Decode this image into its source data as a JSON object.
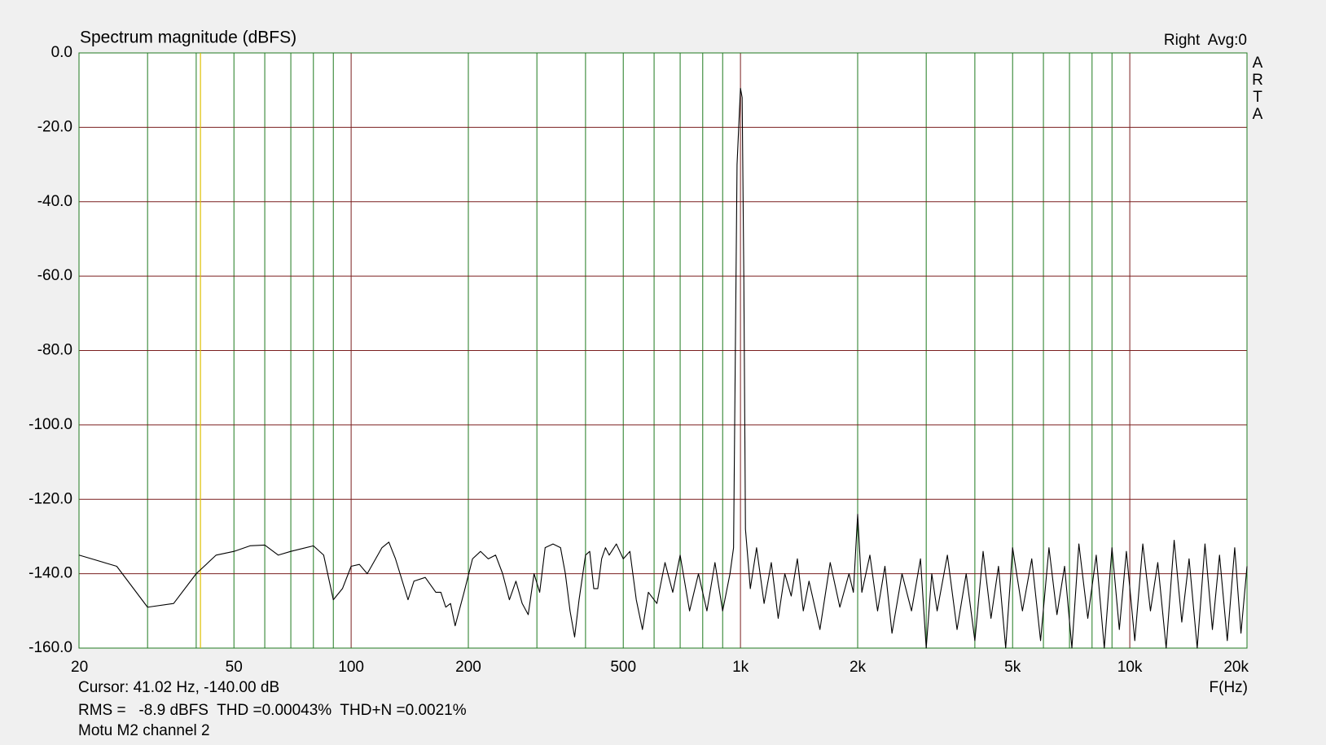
{
  "chart_data": {
    "type": "line",
    "title": "Spectrum magnitude (dBFS)",
    "corner_label": "Right  Avg:0",
    "brand_letters": [
      "A",
      "R",
      "T",
      "A"
    ],
    "xlabel": "F(Hz)",
    "cursor_text": "Cursor: 41.02 Hz, -140.00 dB",
    "stats_text": "RMS =   -8.9 dBFS  THD =0.00043%  THD+N =0.0021%",
    "device_text": "Motu M2 channel 2",
    "cursor_x": 41.02,
    "cursor_color": "#e0c000",
    "stats_color": "#c00000",
    "xscale": "log",
    "xlim": [
      20,
      20000
    ],
    "xticks": [
      20,
      50,
      100,
      200,
      500,
      {
        "value": 1000,
        "label": "1k"
      },
      {
        "value": 2000,
        "label": "2k"
      },
      {
        "value": 5000,
        "label": "5k"
      },
      {
        "value": 10000,
        "label": "10k"
      },
      {
        "value": 20000,
        "label": "20k"
      }
    ],
    "xgrid_minor": [
      30,
      40,
      60,
      70,
      80,
      90,
      300,
      400,
      600,
      700,
      800,
      900,
      3000,
      4000,
      6000,
      7000,
      8000,
      9000
    ],
    "ylim": [
      -160,
      0
    ],
    "yticks": [
      {
        "value": 0,
        "label": "0.0"
      },
      {
        "value": -20,
        "label": "-20.0"
      },
      {
        "value": -40,
        "label": "-40.0"
      },
      {
        "value": -60,
        "label": "-60.0"
      },
      {
        "value": -80,
        "label": "-80.0"
      },
      {
        "value": -100,
        "label": "-100.0"
      },
      {
        "value": -120,
        "label": "-120.0"
      },
      {
        "value": -140,
        "label": "-140.0"
      },
      {
        "value": -160,
        "label": "-160.0"
      }
    ],
    "grid": true,
    "grid_color": "#1f7a1f",
    "decade_grid_color": "#7a1f1f",
    "color": "#000000",
    "x": [
      20,
      25,
      30,
      35,
      40,
      45,
      50,
      55,
      60,
      65,
      70,
      80,
      85,
      90,
      95,
      100,
      105,
      110,
      120,
      125,
      130,
      140,
      145,
      155,
      165,
      170,
      175,
      180,
      185,
      195,
      205,
      215,
      225,
      235,
      245,
      255,
      265,
      275,
      285,
      295,
      305,
      315,
      330,
      345,
      355,
      365,
      375,
      385,
      400,
      410,
      420,
      430,
      440,
      450,
      460,
      480,
      500,
      520,
      540,
      560,
      580,
      610,
      640,
      670,
      700,
      740,
      780,
      820,
      860,
      900,
      940,
      960,
      980,
      1000,
      1010,
      1020,
      1030,
      1060,
      1100,
      1150,
      1200,
      1250,
      1300,
      1350,
      1400,
      1450,
      1500,
      1600,
      1700,
      1800,
      1900,
      1950,
      2000,
      2050,
      2150,
      2250,
      2350,
      2450,
      2600,
      2750,
      2900,
      3000,
      3100,
      3200,
      3400,
      3600,
      3800,
      4000,
      4200,
      4400,
      4600,
      4800,
      5000,
      5300,
      5600,
      5900,
      6200,
      6500,
      6800,
      7100,
      7400,
      7800,
      8200,
      8600,
      9000,
      9400,
      9800,
      10300,
      10800,
      11300,
      11800,
      12400,
      13000,
      13600,
      14200,
      14900,
      15600,
      16300,
      17000,
      17800,
      18600,
      19300,
      20000
    ],
    "values": [
      -135,
      -138,
      -149,
      -148,
      -140,
      -135,
      -134,
      -132.5,
      -132.3,
      -135,
      -134,
      -132.5,
      -135,
      -147,
      -144,
      -138,
      -137.5,
      -140,
      -133,
      -131.5,
      -136,
      -147,
      -142,
      -141,
      -145,
      -145,
      -149,
      -148,
      -154,
      -145,
      -136,
      -134,
      -136,
      -135,
      -140,
      -147,
      -142,
      -148,
      -151,
      -140,
      -145,
      -133,
      -132,
      -133,
      -140,
      -150,
      -157,
      -147,
      -135,
      -134,
      -144,
      -144,
      -136,
      -133,
      -135,
      -132,
      -136,
      -134,
      -147,
      -155,
      -145,
      -148,
      -137,
      -145,
      -135,
      -150,
      -140,
      -150,
      -137,
      -150,
      -140,
      -133,
      -30,
      -9.5,
      -12,
      -60,
      -128,
      -144,
      -133,
      -148,
      -137,
      -152,
      -140,
      -146,
      -136,
      -150,
      -142,
      -155,
      -137,
      -149,
      -140,
      -145,
      -124,
      -145,
      -135,
      -150,
      -138,
      -156,
      -140,
      -150,
      -136,
      -160,
      -140,
      -150,
      -135,
      -155,
      -140,
      -158,
      -134,
      -152,
      -138,
      -160,
      -133,
      -150,
      -136,
      -158,
      -133,
      -151,
      -138,
      -160,
      -132,
      -152,
      -135,
      -160,
      -133,
      -155,
      -134,
      -158,
      -132,
      -150,
      -137,
      -160,
      -131,
      -153,
      -136,
      -160,
      -132,
      -155,
      -135,
      -158,
      -133,
      -156,
      -138
    ]
  }
}
